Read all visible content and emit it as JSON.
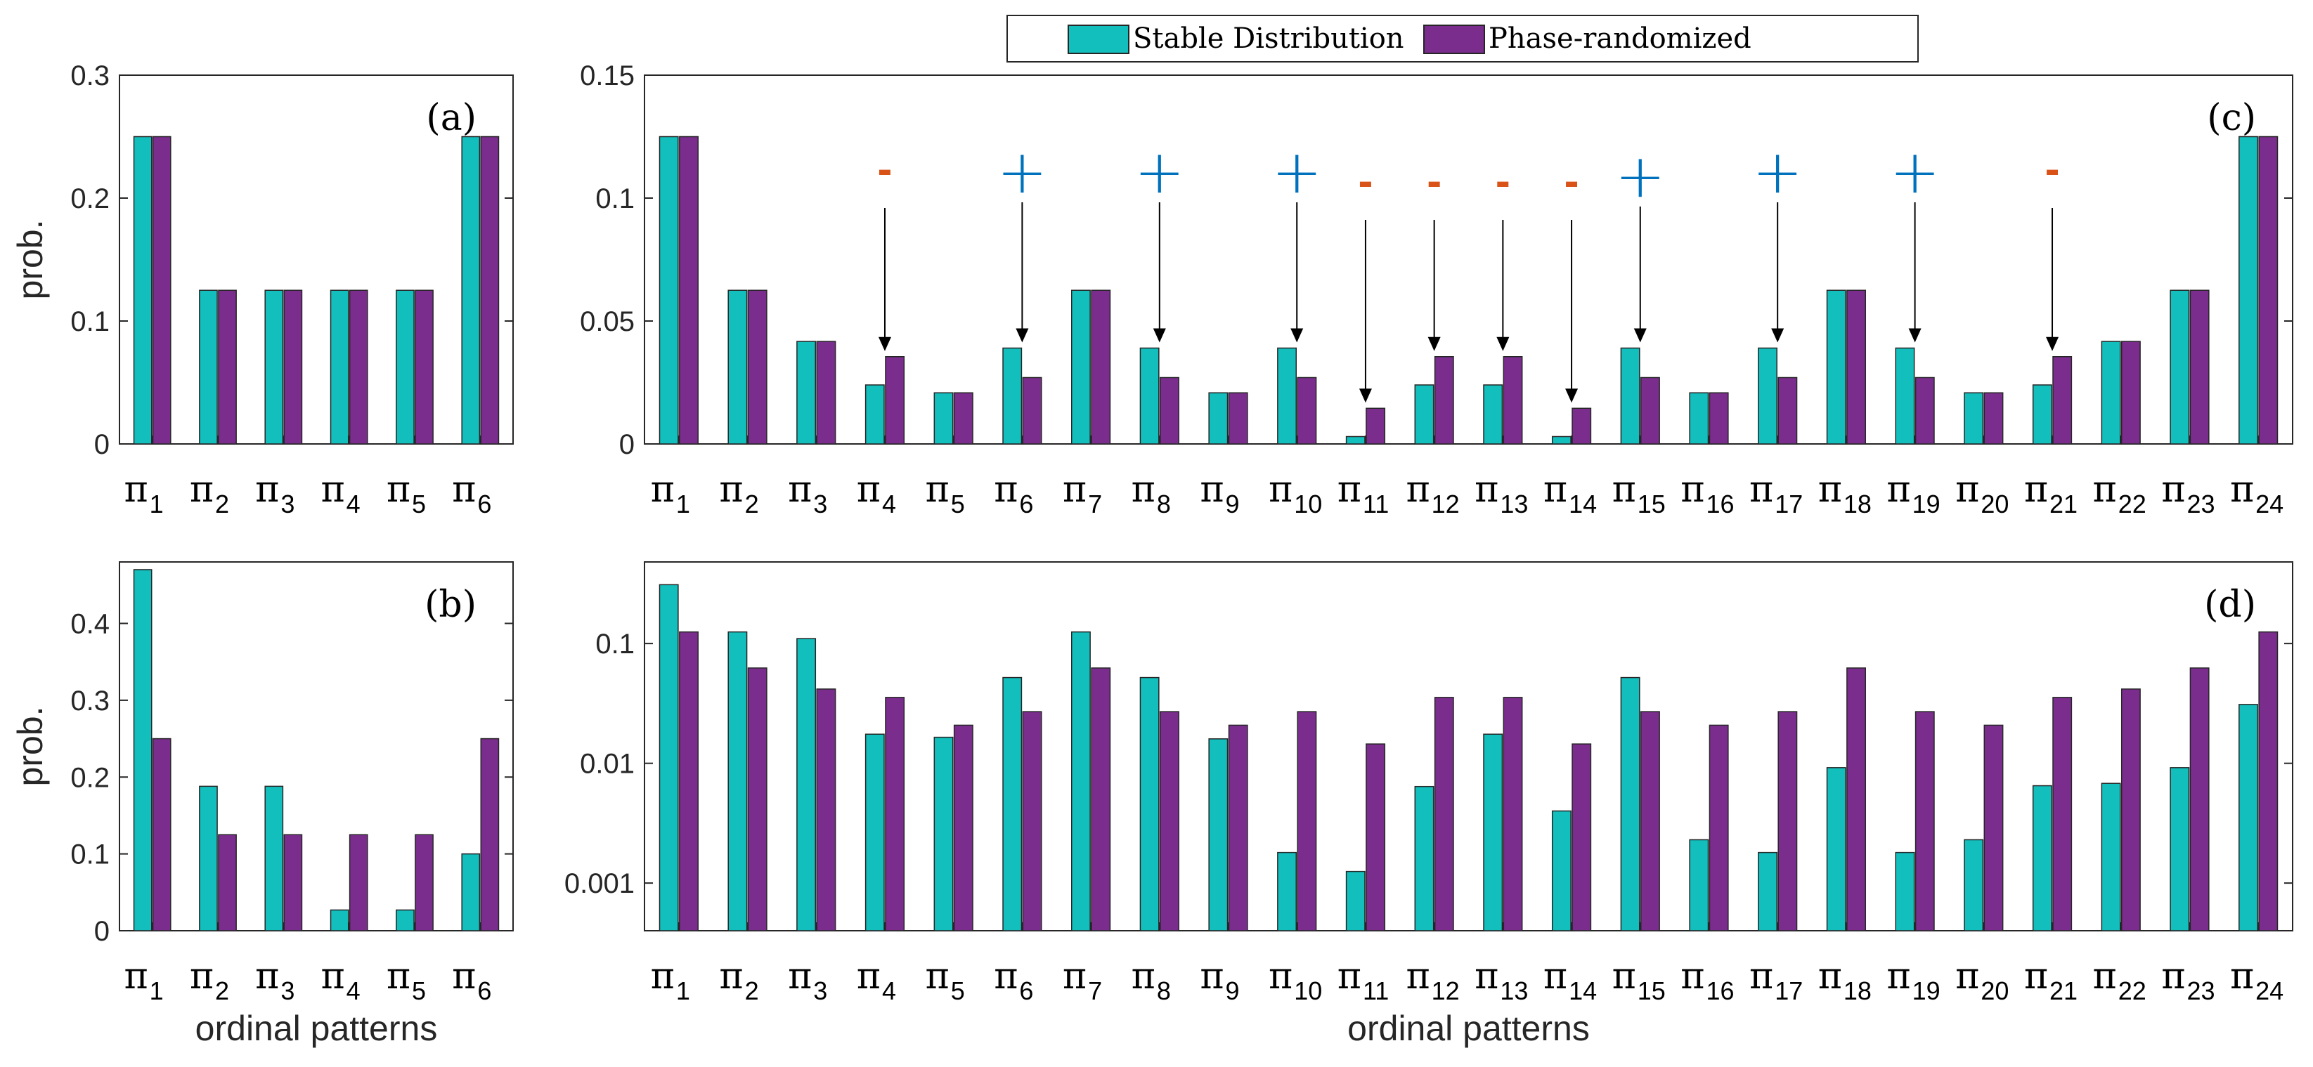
{
  "legend": {
    "labels": [
      "Stable Distribution",
      "Phase-randomized"
    ],
    "colors": [
      "#13BFBD",
      "#7B2D8E"
    ]
  },
  "chart_data": [
    {
      "id": "a",
      "panel_label": "(a)",
      "type": "bar",
      "yscale": "linear",
      "ylim": [
        0,
        0.3
      ],
      "yticks": [
        0,
        0.1,
        0.2,
        0.3
      ],
      "ytick_labels": [
        "0",
        "0.1",
        "0.2",
        "0.3"
      ],
      "ylabel": "prob.",
      "xlabel": "",
      "categories": [
        "1",
        "2",
        "3",
        "4",
        "5",
        "6"
      ],
      "category_symbol": "π",
      "series": [
        {
          "name": "Stable Distribution",
          "values": [
            0.25,
            0.125,
            0.125,
            0.125,
            0.125,
            0.25
          ]
        },
        {
          "name": "Phase-randomized",
          "values": [
            0.25,
            0.125,
            0.125,
            0.125,
            0.125,
            0.25
          ]
        }
      ]
    },
    {
      "id": "b",
      "panel_label": "(b)",
      "type": "bar",
      "yscale": "linear",
      "ylim": [
        0,
        0.48
      ],
      "yticks": [
        0,
        0.1,
        0.2,
        0.3,
        0.4
      ],
      "ytick_labels": [
        "0",
        "0.1",
        "0.2",
        "0.3",
        "0.4"
      ],
      "ylabel": "prob.",
      "xlabel": "ordinal patterns",
      "categories": [
        "1",
        "2",
        "3",
        "4",
        "5",
        "6"
      ],
      "category_symbol": "π",
      "series": [
        {
          "name": "Stable Distribution",
          "values": [
            0.47,
            0.188,
            0.188,
            0.027,
            0.027,
            0.1
          ]
        },
        {
          "name": "Phase-randomized",
          "values": [
            0.25,
            0.125,
            0.125,
            0.125,
            0.125,
            0.25
          ]
        }
      ]
    },
    {
      "id": "c",
      "panel_label": "(c)",
      "type": "bar",
      "yscale": "linear",
      "ylim": [
        0,
        0.15
      ],
      "yticks": [
        0,
        0.05,
        0.1,
        0.15
      ],
      "ytick_labels": [
        "0",
        "0.05",
        "0.1",
        "0.15"
      ],
      "ylabel": "",
      "xlabel": "",
      "categories": [
        "1",
        "2",
        "3",
        "4",
        "5",
        "6",
        "7",
        "8",
        "9",
        "10",
        "11",
        "12",
        "13",
        "14",
        "15",
        "16",
        "17",
        "18",
        "19",
        "20",
        "21",
        "22",
        "23",
        "24"
      ],
      "category_symbol": "π",
      "series": [
        {
          "name": "Stable Distribution",
          "values": [
            0.125,
            0.0625,
            0.0417,
            0.024,
            0.0208,
            0.039,
            0.0625,
            0.039,
            0.0208,
            0.039,
            0.003,
            0.024,
            0.024,
            0.003,
            0.039,
            0.0208,
            0.039,
            0.0625,
            0.039,
            0.0208,
            0.024,
            0.0417,
            0.0625,
            0.125
          ]
        },
        {
          "name": "Phase-randomized",
          "values": [
            0.125,
            0.0625,
            0.0417,
            0.0355,
            0.0208,
            0.027,
            0.0625,
            0.027,
            0.0208,
            0.027,
            0.0145,
            0.0355,
            0.0355,
            0.0145,
            0.027,
            0.0208,
            0.027,
            0.0625,
            0.027,
            0.0208,
            0.0355,
            0.0417,
            0.0625,
            0.125
          ]
        }
      ],
      "annotations": [
        {
          "category": "4",
          "sign": "-"
        },
        {
          "category": "6",
          "sign": "+"
        },
        {
          "category": "8",
          "sign": "+"
        },
        {
          "category": "10",
          "sign": "+"
        },
        {
          "category": "11",
          "sign": "-"
        },
        {
          "category": "12",
          "sign": "-"
        },
        {
          "category": "13",
          "sign": "-"
        },
        {
          "category": "14",
          "sign": "-"
        },
        {
          "category": "15",
          "sign": "+"
        },
        {
          "category": "17",
          "sign": "+"
        },
        {
          "category": "19",
          "sign": "+"
        },
        {
          "category": "21",
          "sign": "-"
        }
      ],
      "annotation_colors": {
        "+": "#0072BD",
        "-": "#D95319"
      }
    },
    {
      "id": "d",
      "panel_label": "(d)",
      "type": "bar",
      "yscale": "log",
      "ylim": [
        0.0004,
        0.48
      ],
      "yticks": [
        0.001,
        0.01,
        0.1
      ],
      "ytick_labels": [
        "0.001",
        "0.01",
        "0.1"
      ],
      "ylabel": "",
      "xlabel": "ordinal patterns",
      "categories": [
        "1",
        "2",
        "3",
        "4",
        "5",
        "6",
        "7",
        "8",
        "9",
        "10",
        "11",
        "12",
        "13",
        "14",
        "15",
        "16",
        "17",
        "18",
        "19",
        "20",
        "21",
        "22",
        "23",
        "24"
      ],
      "category_symbol": "π",
      "series": [
        {
          "name": "Stable Distribution",
          "values": [
            0.31,
            0.125,
            0.11,
            0.0175,
            0.0165,
            0.052,
            0.125,
            0.052,
            0.016,
            0.0018,
            0.00125,
            0.0064,
            0.0175,
            0.004,
            0.052,
            0.0023,
            0.0018,
            0.0092,
            0.0018,
            0.0023,
            0.0065,
            0.0068,
            0.0092,
            0.031
          ]
        },
        {
          "name": "Phase-randomized",
          "values": [
            0.125,
            0.0625,
            0.0417,
            0.0355,
            0.0208,
            0.027,
            0.0625,
            0.027,
            0.0208,
            0.027,
            0.0145,
            0.0355,
            0.0355,
            0.0145,
            0.027,
            0.0208,
            0.027,
            0.0625,
            0.027,
            0.0208,
            0.0355,
            0.0417,
            0.0625,
            0.125
          ]
        }
      ]
    }
  ]
}
